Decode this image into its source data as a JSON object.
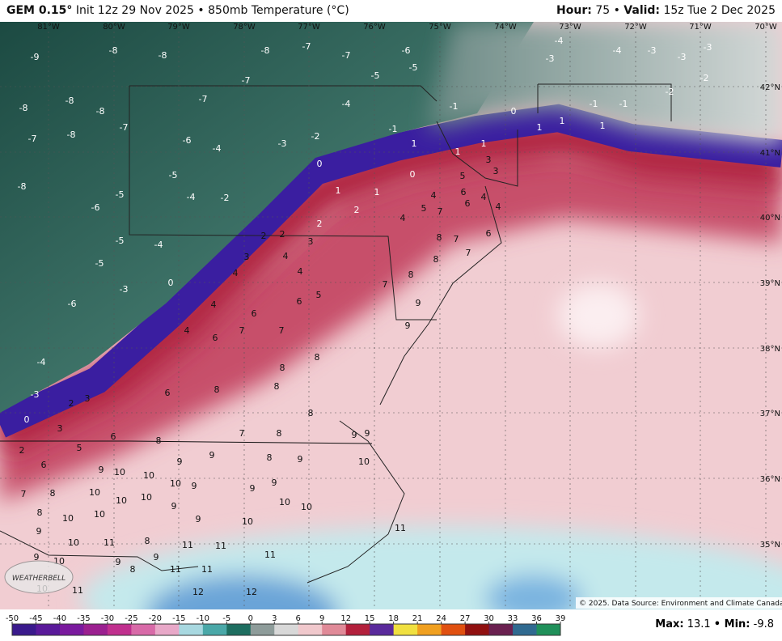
{
  "header": {
    "model": "GEM 0.15°",
    "run": "Init 12z 29 Nov 2025 • 850mb Temperature (°C)",
    "hour_label": "Hour:",
    "hour": "75 •",
    "valid_label": "Valid:",
    "valid": "15z Tue 2 Dec 2025"
  },
  "longitudes": [
    "81°W",
    "80°W",
    "79°W",
    "78°W",
    "77°W",
    "76°W",
    "75°W",
    "74°W",
    "73°W",
    "72°W",
    "71°W",
    "70°W"
  ],
  "latitudes": [
    "42°N",
    "41°N",
    "40°N",
    "39°N",
    "38°N",
    "37°N",
    "36°N",
    "35°N"
  ],
  "map_values": [
    -9,
    -8,
    -8,
    -7,
    -8,
    -7,
    -7,
    -6,
    -5,
    -5,
    -4,
    -1,
    0,
    -4,
    -3,
    -4,
    -3,
    -3,
    -3,
    -2,
    -2,
    -1,
    -1,
    -8,
    -8,
    -8,
    -7,
    -8,
    -7,
    -6,
    -7,
    -4,
    -3,
    -2,
    -1,
    -8,
    -6,
    -5,
    -5,
    -4,
    -2,
    -5,
    -4,
    -5,
    -3,
    0,
    -6,
    -4,
    -3,
    0,
    0,
    1,
    1,
    2,
    2,
    1,
    1,
    1,
    1,
    1,
    1,
    3,
    0,
    5,
    3,
    6,
    4,
    5,
    4,
    6,
    4,
    4,
    7,
    2,
    2,
    3,
    3,
    4,
    4,
    4,
    5,
    6,
    4,
    6,
    7,
    7,
    6,
    4,
    8,
    7,
    6,
    8,
    7,
    8,
    9,
    9,
    7,
    8,
    8,
    8,
    8,
    8,
    6,
    3,
    2,
    3,
    6,
    2,
    5,
    6,
    8,
    7,
    8,
    9,
    9,
    8,
    9,
    9,
    10,
    10,
    9,
    9,
    10,
    9,
    7,
    8,
    10,
    10,
    10,
    9,
    9,
    8,
    10,
    10,
    9,
    10,
    10,
    10,
    9,
    9,
    10,
    11,
    8,
    11,
    11,
    11,
    9,
    10,
    9,
    9,
    8,
    11,
    11,
    11,
    10,
    11,
    12,
    12,
    10
  ],
  "colorbar": {
    "ticks": [
      -50,
      -45,
      -40,
      -35,
      -30,
      -25,
      -20,
      -15,
      -10,
      -5,
      0,
      3,
      6,
      9,
      12,
      15,
      18,
      21,
      24,
      27,
      30,
      33,
      36,
      39
    ],
    "colors": [
      "#3a1a8c",
      "#5a1a9a",
      "#7a1a9e",
      "#9b2090",
      "#c0308e",
      "#d86aa8",
      "#e8a8c8",
      "#a8d8e0",
      "#4aa8a8",
      "#1e6e60",
      "#8e9c9a",
      "#d8d8d8",
      "#f0c8cc",
      "#e08a98",
      "#b3203c",
      "#5a2a9c",
      "#f0e040",
      "#f0a020",
      "#e05010",
      "#901010",
      "#6a2050",
      "#306a90",
      "#20905a"
    ]
  },
  "stats": {
    "max_label": "Max:",
    "max": 13.1,
    "min_label": "• Min:",
    "min": -9.8
  },
  "copyright": "© 2025. Data Source: Environment and Climate Canada.",
  "logo": "WEATHERBELL"
}
